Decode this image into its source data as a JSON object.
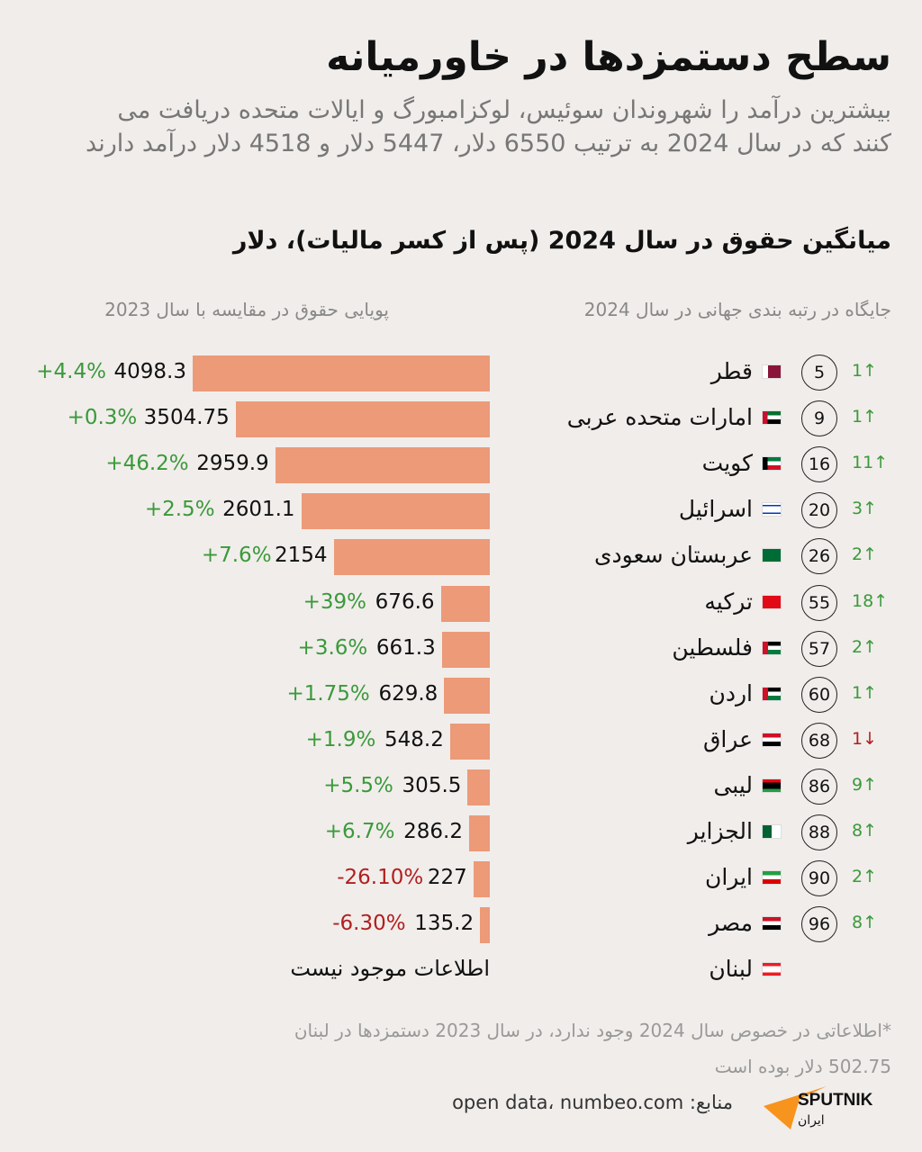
{
  "title": "سطح دستمزدها در خاورمیانه",
  "subtitle": "بیشترین درآمد را شهروندان سوئیس، لوکزامبورگ و ایالات متحده دریافت می کنند که در سال 2024 به ترتیب 6550 دلار، 5447 دلار و 4518 دلار درآمد دارند",
  "chart_data": {
    "type": "bar",
    "title": "میانگین حقوق در سال 2024 (پس از کسر مالیات)، دلار",
    "left_header": "پویایی حقوق در مقایسه با سال 2023",
    "right_header": "جایگاه در رتبه بندی جهانی در سال 2024",
    "no_data_label": "اطلاعات موجود نیست",
    "up_color": "#3a9a3a",
    "down_color": "#b02020",
    "bar_color": "#ec9a78",
    "rows": [
      {
        "country": "قطر",
        "flag": "qatar",
        "value": 4098.3,
        "value_label": "4098.3",
        "change": "+4.4%",
        "rank": "5",
        "rank_change": "1",
        "dir": "up"
      },
      {
        "country": "امارات متحده عربی",
        "flag": "uae",
        "value": 3504.75,
        "value_label": "3504.75",
        "change": "+0.3%",
        "rank": "9",
        "rank_change": "1",
        "dir": "up"
      },
      {
        "country": "کویت",
        "flag": "kuwait",
        "value": 2959.9,
        "value_label": "2959.9",
        "change": "+46.2%",
        "rank": "16",
        "rank_change": "11",
        "dir": "up"
      },
      {
        "country": "اسرائیل",
        "flag": "israel",
        "value": 2601.1,
        "value_label": "2601.1",
        "change": "+2.5%",
        "rank": "20",
        "rank_change": "3",
        "dir": "up"
      },
      {
        "country": "عربستان سعودی",
        "flag": "saudi",
        "value": 2154,
        "value_label": "2154",
        "change": "+7.6%",
        "rank": "26",
        "rank_change": "2",
        "dir": "up"
      },
      {
        "country": "ترکیه",
        "flag": "turkey",
        "value": 676.6,
        "value_label": "676.6",
        "change": "+39%",
        "rank": "55",
        "rank_change": "18",
        "dir": "up"
      },
      {
        "country": "فلسطین",
        "flag": "palestine",
        "value": 661.3,
        "value_label": "661.3",
        "change": "+3.6%",
        "rank": "57",
        "rank_change": "2",
        "dir": "up"
      },
      {
        "country": "اردن",
        "flag": "jordan",
        "value": 629.8,
        "value_label": "629.8",
        "change": "+1.75%",
        "rank": "60",
        "rank_change": "1",
        "dir": "up"
      },
      {
        "country": "عراق",
        "flag": "iraq",
        "value": 548.2,
        "value_label": "548.2",
        "change": "+1.9%",
        "rank": "68",
        "rank_change": "1",
        "dir": "down"
      },
      {
        "country": "لیبی",
        "flag": "libya",
        "value": 305.5,
        "value_label": "305.5",
        "change": "+5.5%",
        "rank": "86",
        "rank_change": "9",
        "dir": "up"
      },
      {
        "country": "الجزایر",
        "flag": "algeria",
        "value": 286.2,
        "value_label": "286.2",
        "change": "+6.7%",
        "rank": "88",
        "rank_change": "8",
        "dir": "up"
      },
      {
        "country": "ایران",
        "flag": "iran",
        "value": 227,
        "value_label": "227",
        "change": "-26.10%",
        "rank": "90",
        "rank_change": "2",
        "dir": "up"
      },
      {
        "country": "مصر",
        "flag": "egypt",
        "value": 135.2,
        "value_label": "135.2",
        "change": "-6.30%",
        "rank": "96",
        "rank_change": "8",
        "dir": "up"
      },
      {
        "country": "لبنان",
        "flag": "lebanon",
        "value": null,
        "value_label": "",
        "change": "",
        "rank": "",
        "rank_change": "",
        "dir": ""
      }
    ]
  },
  "footnote": "*اطلاعاتی در خصوص سال 2024 وجود ندارد، در سال 2023 دستمزدها در لبنان 502.75 دلار بوده است",
  "sources": "منابع: open data، numbeo.com",
  "logo": {
    "name": "SPUTNIK",
    "sub": "ایران",
    "color": "#f7941d"
  }
}
